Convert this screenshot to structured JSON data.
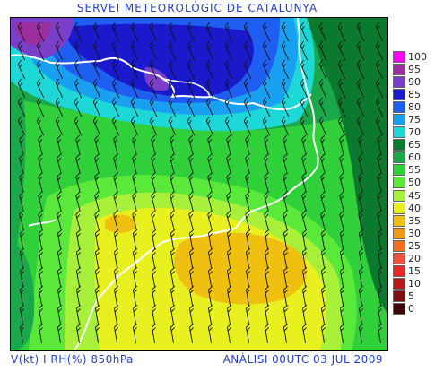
{
  "header": {
    "title": "SERVEI METEOROLÒGIC DE CATALUNYA"
  },
  "footer": {
    "variables": "V(kt) I RH(%) 850hPa",
    "analysis": "ANÀLISI 00UTC 03 JUL 2009"
  },
  "legend": {
    "entries": [
      {
        "label": "100",
        "color": "#ff00ff"
      },
      {
        "label": "95",
        "color": "#9b2fa0"
      },
      {
        "label": "90",
        "color": "#7a3ec8"
      },
      {
        "label": "85",
        "color": "#1a1acc"
      },
      {
        "label": "80",
        "color": "#1e5ef0"
      },
      {
        "label": "75",
        "color": "#1aa0f0"
      },
      {
        "label": "70",
        "color": "#1ed8d8"
      },
      {
        "label": "65",
        "color": "#0b7a2e"
      },
      {
        "label": "60",
        "color": "#1aa84a"
      },
      {
        "label": "55",
        "color": "#2fd03a"
      },
      {
        "label": "50",
        "color": "#5ae83a"
      },
      {
        "label": "45",
        "color": "#a8f03a"
      },
      {
        "label": "40",
        "color": "#e8f020"
      },
      {
        "label": "35",
        "color": "#f0c010"
      },
      {
        "label": "30",
        "color": "#f09818"
      },
      {
        "label": "25",
        "color": "#f07020"
      },
      {
        "label": "20",
        "color": "#f05040"
      },
      {
        "label": "15",
        "color": "#e82828"
      },
      {
        "label": "10",
        "color": "#b81818"
      },
      {
        "label": "5",
        "color": "#801010"
      },
      {
        "label": "0",
        "color": "#400808"
      }
    ]
  }
}
